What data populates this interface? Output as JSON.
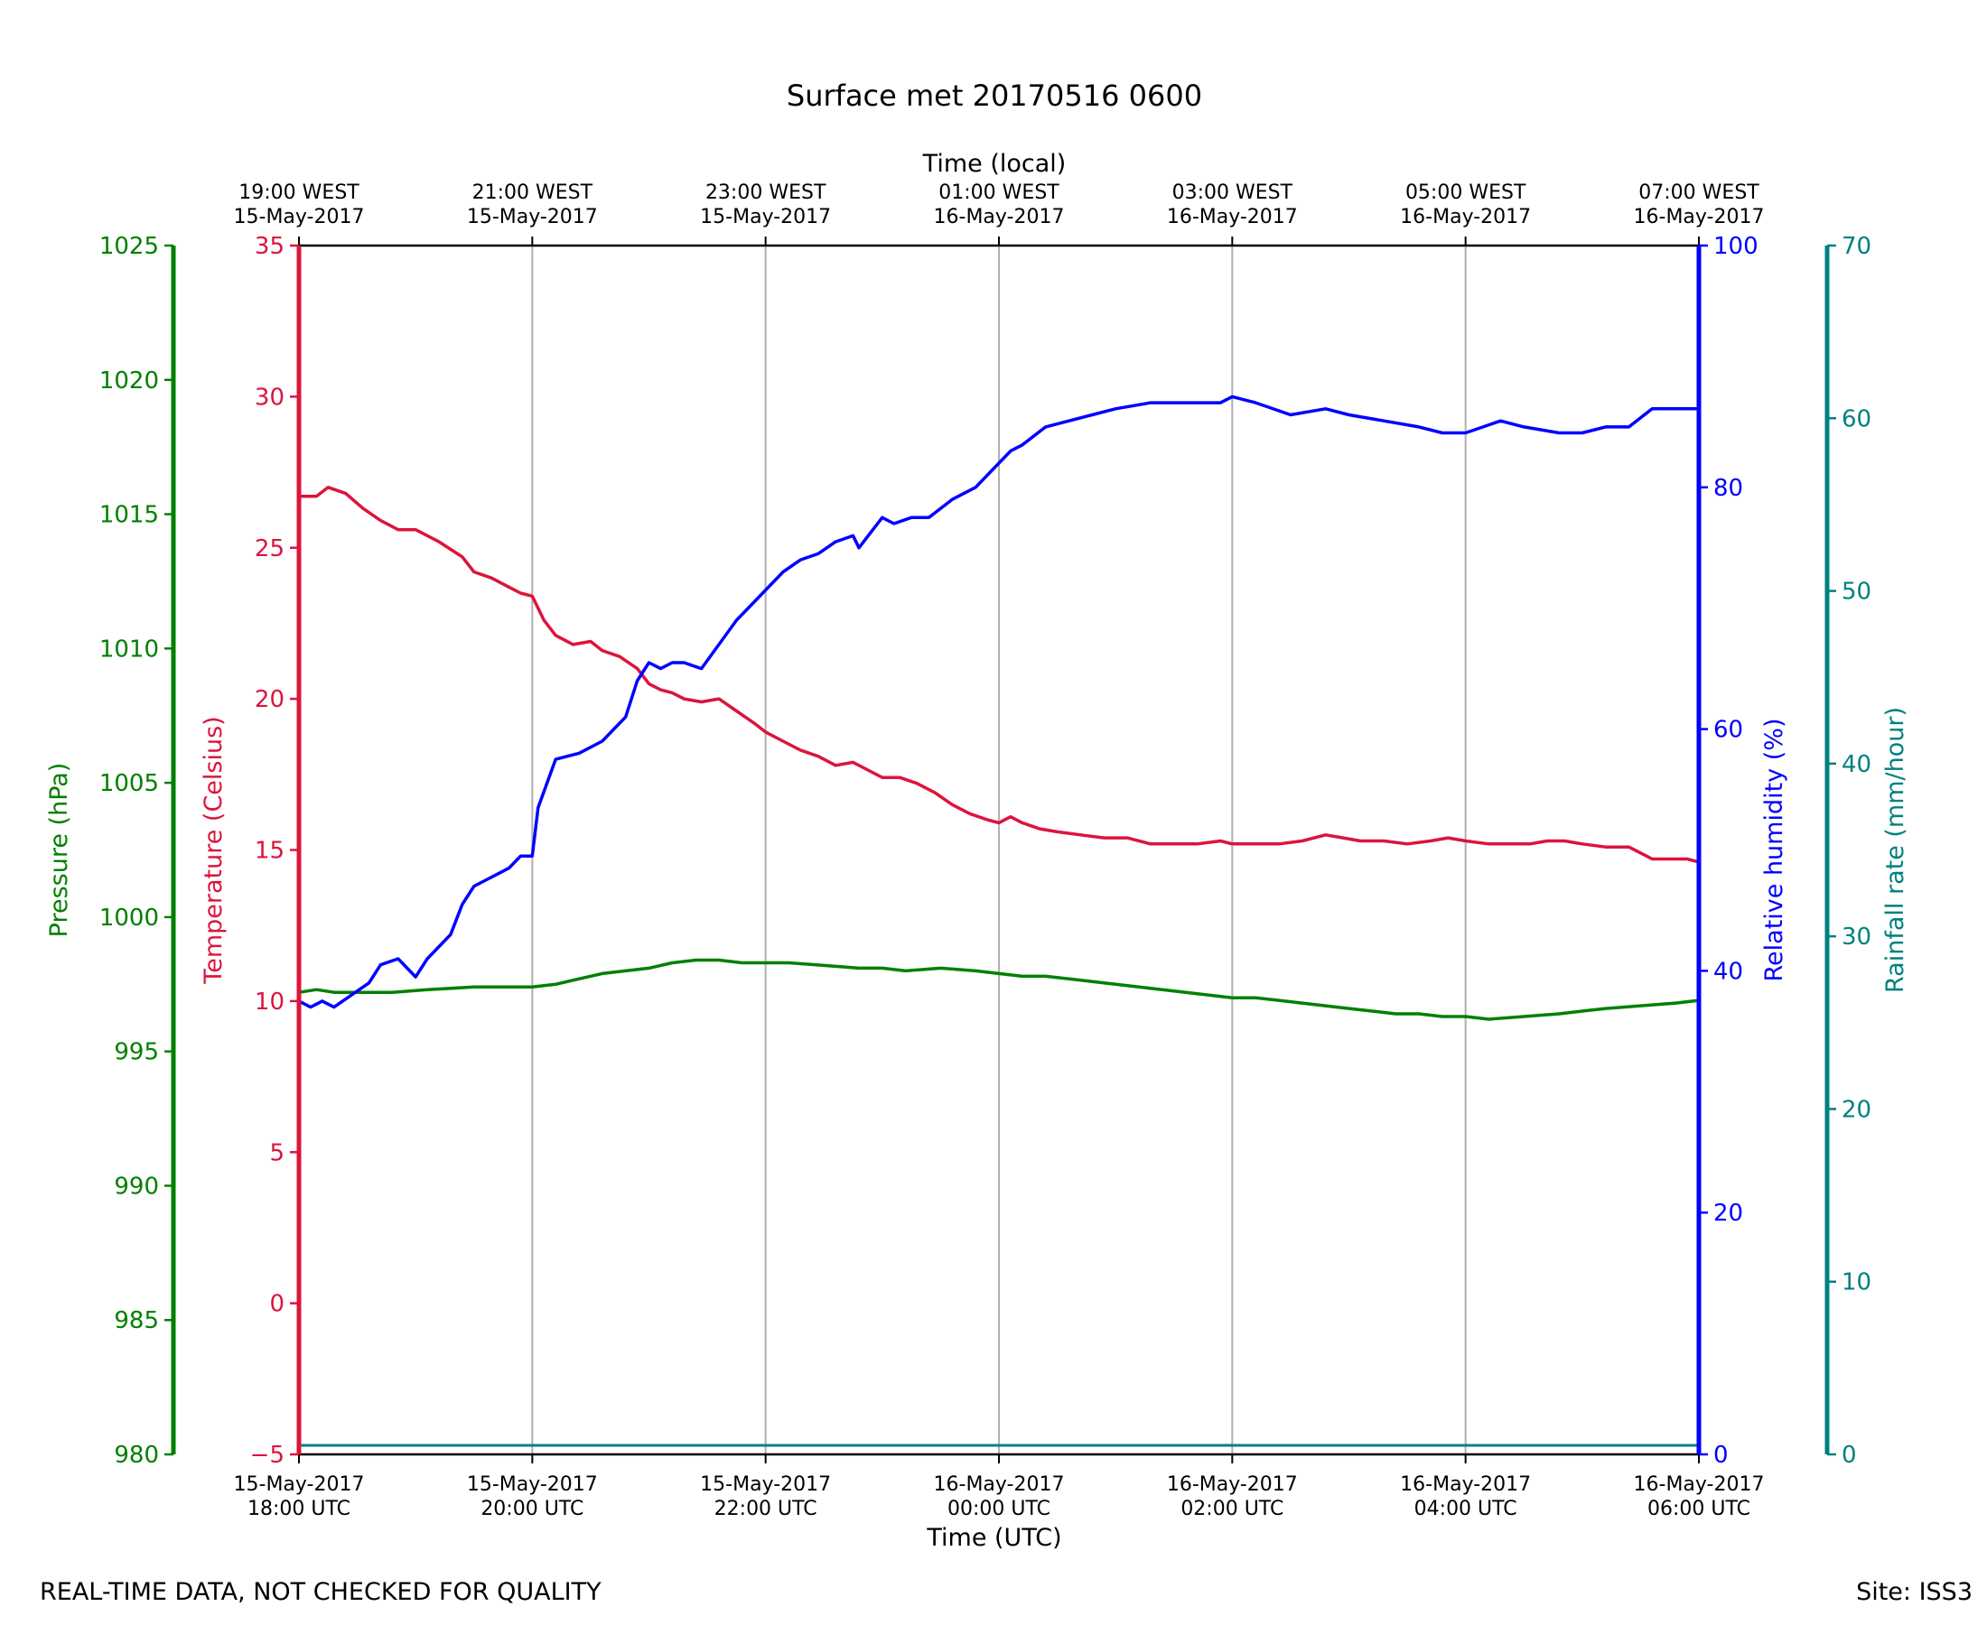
{
  "chart_data": {
    "type": "line",
    "title": "Surface met 20170516 0600",
    "xlabel": "Time (UTC)",
    "xlabel_top": "Time (local)",
    "x_ticks_bottom": [
      [
        "15-May-2017",
        "18:00 UTC"
      ],
      [
        "15-May-2017",
        "20:00 UTC"
      ],
      [
        "15-May-2017",
        "22:00 UTC"
      ],
      [
        "16-May-2017",
        "00:00 UTC"
      ],
      [
        "16-May-2017",
        "02:00 UTC"
      ],
      [
        "16-May-2017",
        "04:00 UTC"
      ],
      [
        "16-May-2017",
        "06:00 UTC"
      ]
    ],
    "x_ticks_top": [
      [
        "19:00 WEST",
        "15-May-2017"
      ],
      [
        "21:00 WEST",
        "15-May-2017"
      ],
      [
        "23:00 WEST",
        "15-May-2017"
      ],
      [
        "01:00 WEST",
        "16-May-2017"
      ],
      [
        "03:00 WEST",
        "16-May-2017"
      ],
      [
        "05:00 WEST",
        "16-May-2017"
      ],
      [
        "07:00 WEST",
        "16-May-2017"
      ]
    ],
    "x_hours": [
      0,
      2,
      4,
      6,
      8,
      10,
      12
    ],
    "xlim": [
      0,
      12
    ],
    "grid": "vertical",
    "axes": {
      "temperature": {
        "label": "Temperature (Celsius)",
        "color": "#dc143c",
        "ylim": [
          -5,
          35
        ],
        "ticks": [
          -5,
          0,
          5,
          10,
          15,
          20,
          25,
          30,
          35
        ]
      },
      "pressure": {
        "label": "Pressure (hPa)",
        "color": "#008000",
        "ylim": [
          980,
          1025
        ],
        "ticks": [
          980,
          985,
          990,
          995,
          1000,
          1005,
          1010,
          1015,
          1020,
          1025
        ]
      },
      "humidity": {
        "label": "Relative humidity (%)",
        "color": "#0000ff",
        "ylim": [
          0,
          100
        ],
        "ticks": [
          0,
          20,
          40,
          60,
          80,
          100
        ]
      },
      "rainfall": {
        "label": "Rainfall rate (mm/hour)",
        "color": "#008080",
        "ylim": [
          0,
          70
        ],
        "ticks": [
          0,
          10,
          20,
          30,
          40,
          50,
          60,
          70
        ]
      }
    },
    "series": [
      {
        "name": "Temperature (Celsius)",
        "axis": "temperature",
        "color": "#dc143c",
        "x": [
          0,
          0.15,
          0.25,
          0.4,
          0.55,
          0.7,
          0.85,
          1.0,
          1.2,
          1.4,
          1.5,
          1.65,
          1.8,
          1.9,
          2.0,
          2.1,
          2.2,
          2.35,
          2.5,
          2.6,
          2.75,
          2.9,
          3.0,
          3.1,
          3.2,
          3.3,
          3.45,
          3.6,
          3.75,
          3.9,
          4.0,
          4.15,
          4.3,
          4.45,
          4.6,
          4.75,
          4.9,
          5.0,
          5.15,
          5.3,
          5.45,
          5.6,
          5.75,
          5.9,
          6.0,
          6.1,
          6.2,
          6.35,
          6.5,
          6.7,
          6.9,
          7.1,
          7.3,
          7.5,
          7.7,
          7.9,
          8.0,
          8.2,
          8.4,
          8.6,
          8.8,
          8.95,
          9.1,
          9.3,
          9.5,
          9.7,
          9.85,
          10.0,
          10.2,
          10.4,
          10.55,
          10.7,
          10.85,
          11.0,
          11.2,
          11.4,
          11.5,
          11.6,
          11.7,
          11.8,
          11.9,
          12.0
        ],
        "y": [
          26.7,
          26.7,
          27.0,
          26.8,
          26.3,
          25.9,
          25.6,
          25.6,
          25.2,
          24.7,
          24.2,
          24.0,
          23.7,
          23.5,
          23.4,
          22.6,
          22.1,
          21.8,
          21.9,
          21.6,
          21.4,
          21.0,
          20.5,
          20.3,
          20.2,
          20.0,
          19.9,
          20.0,
          19.6,
          19.2,
          18.9,
          18.6,
          18.3,
          18.1,
          17.8,
          17.9,
          17.6,
          17.4,
          17.4,
          17.2,
          16.9,
          16.5,
          16.2,
          16.0,
          15.9,
          16.1,
          15.9,
          15.7,
          15.6,
          15.5,
          15.4,
          15.4,
          15.2,
          15.2,
          15.2,
          15.3,
          15.2,
          15.2,
          15.2,
          15.3,
          15.5,
          15.4,
          15.3,
          15.3,
          15.2,
          15.3,
          15.4,
          15.3,
          15.2,
          15.2,
          15.2,
          15.3,
          15.3,
          15.2,
          15.1,
          15.1,
          14.9,
          14.7,
          14.7,
          14.7,
          14.7,
          14.6
        ]
      },
      {
        "name": "Pressure (hPa)",
        "axis": "pressure",
        "color": "#008000",
        "x": [
          0,
          0.15,
          0.3,
          0.5,
          0.8,
          1.1,
          1.5,
          2.0,
          2.2,
          2.4,
          2.6,
          2.8,
          3.0,
          3.2,
          3.4,
          3.6,
          3.8,
          4.0,
          4.2,
          4.5,
          4.8,
          5.0,
          5.2,
          5.5,
          5.8,
          6.0,
          6.2,
          6.4,
          6.6,
          6.8,
          7.0,
          7.2,
          7.4,
          7.6,
          7.8,
          8.0,
          8.2,
          8.4,
          8.6,
          8.8,
          9.0,
          9.2,
          9.4,
          9.6,
          9.8,
          10.0,
          10.2,
          10.5,
          10.8,
          11.0,
          11.2,
          11.5,
          11.8,
          12.0
        ],
        "y": [
          997.2,
          997.3,
          997.2,
          997.2,
          997.2,
          997.3,
          997.4,
          997.4,
          997.5,
          997.7,
          997.9,
          998.0,
          998.1,
          998.3,
          998.4,
          998.4,
          998.3,
          998.3,
          998.3,
          998.2,
          998.1,
          998.1,
          998.0,
          998.1,
          998.0,
          997.9,
          997.8,
          997.8,
          997.7,
          997.6,
          997.5,
          997.4,
          997.3,
          997.2,
          997.1,
          997.0,
          997.0,
          996.9,
          996.8,
          996.7,
          996.6,
          996.5,
          996.4,
          996.4,
          996.3,
          996.3,
          996.2,
          996.3,
          996.4,
          996.5,
          996.6,
          996.7,
          996.8,
          996.9
        ]
      },
      {
        "name": "Relative humidity (%)",
        "axis": "humidity",
        "color": "#0000ff",
        "x": [
          0,
          0.1,
          0.2,
          0.3,
          0.45,
          0.6,
          0.7,
          0.85,
          1.0,
          1.1,
          1.2,
          1.3,
          1.4,
          1.5,
          1.6,
          1.7,
          1.8,
          1.9,
          2.0,
          2.05,
          2.2,
          2.4,
          2.6,
          2.8,
          2.9,
          3.0,
          3.1,
          3.2,
          3.3,
          3.45,
          3.6,
          3.75,
          3.9,
          4.0,
          4.15,
          4.3,
          4.45,
          4.6,
          4.75,
          4.8,
          5.0,
          5.1,
          5.25,
          5.4,
          5.6,
          5.8,
          6.0,
          6.1,
          6.2,
          6.4,
          6.6,
          6.8,
          7.0,
          7.3,
          7.6,
          7.9,
          8.0,
          8.2,
          8.5,
          8.8,
          9.0,
          9.3,
          9.6,
          9.8,
          10.0,
          10.3,
          10.5,
          10.8,
          11.0,
          11.2,
          11.4,
          11.6,
          11.8,
          12.0
        ],
        "y": [
          37.5,
          37.0,
          37.5,
          37.0,
          38.0,
          39.0,
          40.5,
          41.0,
          39.5,
          41.0,
          42.0,
          43.0,
          45.5,
          47.0,
          47.5,
          48.0,
          48.5,
          49.5,
          49.5,
          53.5,
          57.5,
          58.0,
          59.0,
          61.0,
          64.0,
          65.5,
          65.0,
          65.5,
          65.5,
          65.0,
          67.0,
          69.0,
          70.5,
          71.5,
          73.0,
          74.0,
          74.5,
          75.5,
          76.0,
          75.0,
          77.5,
          77.0,
          77.5,
          77.5,
          79.0,
          80.0,
          82.0,
          83.0,
          83.5,
          85.0,
          85.5,
          86.0,
          86.5,
          87.0,
          87.0,
          87.0,
          87.5,
          87.0,
          86.0,
          86.5,
          86.0,
          85.5,
          85.0,
          84.5,
          84.5,
          85.5,
          85.0,
          84.5,
          84.5,
          85.0,
          85.0,
          86.5,
          86.5,
          86.5
        ]
      },
      {
        "name": "Rainfall rate (mm/hour)",
        "axis": "rainfall",
        "color": "#008080",
        "x": [
          0,
          12
        ],
        "y": [
          0,
          0
        ]
      }
    ]
  },
  "footer": {
    "left": "REAL-TIME DATA, NOT CHECKED FOR QUALITY",
    "right": "Site: ISS3"
  }
}
